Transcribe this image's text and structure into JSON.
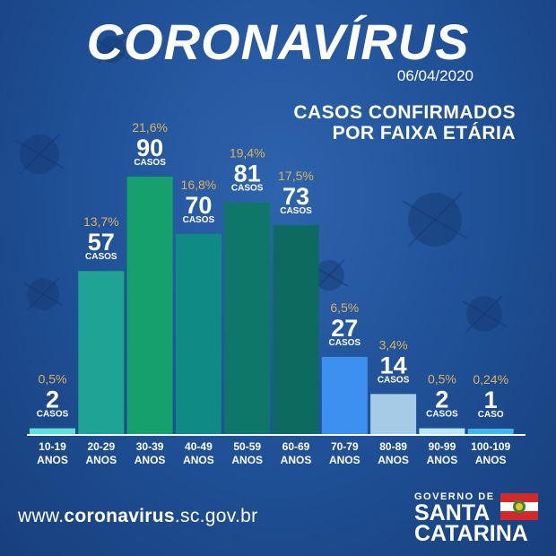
{
  "header": {
    "title": "CORONAVÍRUS",
    "date": "06/04/2020",
    "subtitle_line1": "CASOS CONFIRMADOS",
    "subtitle_line2": "POR FAIXA ETÁRIA"
  },
  "chart_data": {
    "type": "bar",
    "title": "CASOS CONFIRMADOS POR FAIXA ETÁRIA",
    "categories": [
      [
        "10-19",
        "ANOS"
      ],
      [
        "20-29",
        "ANOS"
      ],
      [
        "30-39",
        "ANOS"
      ],
      [
        "40-49",
        "ANOS"
      ],
      [
        "50-59",
        "ANOS"
      ],
      [
        "60-69",
        "ANOS"
      ],
      [
        "70-79",
        "ANOS"
      ],
      [
        "80-89",
        "ANOS"
      ],
      [
        "90-99",
        "ANOS"
      ],
      [
        "100-109",
        "ANOS"
      ]
    ],
    "values": [
      2,
      57,
      90,
      70,
      81,
      73,
      27,
      14,
      2,
      1
    ],
    "percentages": [
      "0,5%",
      "13,7%",
      "21,6%",
      "16,8%",
      "19,4%",
      "17,5%",
      "6,5%",
      "3,4%",
      "0,5%",
      "0,24%"
    ],
    "unit_labels": [
      "CASOS",
      "CASOS",
      "CASOS",
      "CASOS",
      "CASOS",
      "CASOS",
      "CASOS",
      "CASOS",
      "CASOS",
      "CASO"
    ],
    "colors": [
      "#5fe0d6",
      "#1fa394",
      "#16a06e",
      "#0f8a85",
      "#0f766a",
      "#0c6b5e",
      "#3d8ff0",
      "#a6cbe6",
      "#b9e7f5",
      "#3fb6ee"
    ],
    "ylim": [
      0,
      90
    ],
    "grid": false,
    "legend": "none",
    "value_color": "#ffffff",
    "percent_color": "#e0b15a"
  },
  "footer": {
    "url_prefix": "www.",
    "url_bold": "coronavirus",
    "url_suffix": ".sc.gov.br",
    "logo_line1": "GOVERNO DE",
    "logo_line2": "SANTA",
    "logo_line3": "CATARINA"
  }
}
